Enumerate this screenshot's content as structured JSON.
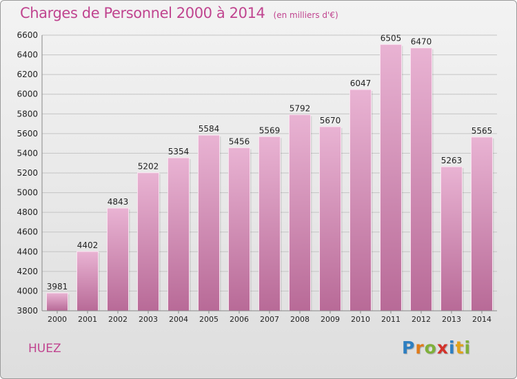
{
  "header": {
    "title": "Charges de Personnel 2000 à 2014",
    "unit": "(en milliers d'€)"
  },
  "footer": {
    "commune": "HUEZ",
    "logo_letters": [
      "P",
      "r",
      "o",
      "x",
      "i",
      "t",
      "i"
    ],
    "logo_colors": [
      "#2e7fc1",
      "#e07b1a",
      "#7fb03a",
      "#d3322a",
      "#2e7fc1",
      "#e0a21a",
      "#7fb03a"
    ]
  },
  "colors": {
    "bar_light": "#e9b3d3",
    "bar_dark": "#b86a97",
    "grid": "#c4c4c4",
    "title": "#c0448f"
  },
  "chart_data": {
    "type": "bar",
    "title": "Charges de Personnel 2000 à 2014",
    "ylabel": "",
    "xlabel": "",
    "categories": [
      "2000",
      "2001",
      "2002",
      "2003",
      "2004",
      "2005",
      "2006",
      "2007",
      "2008",
      "2009",
      "2010",
      "2011",
      "2012",
      "2013",
      "2014"
    ],
    "values": [
      3981,
      4402,
      4843,
      5202,
      5354,
      5584,
      5456,
      5569,
      5792,
      5670,
      6047,
      6505,
      6470,
      5263,
      5565
    ],
    "ylim": [
      3800,
      6600
    ],
    "yticks": [
      3800,
      4000,
      4200,
      4400,
      4600,
      4800,
      5000,
      5200,
      5400,
      5600,
      5800,
      6000,
      6200,
      6400,
      6600
    ],
    "grid": true
  }
}
